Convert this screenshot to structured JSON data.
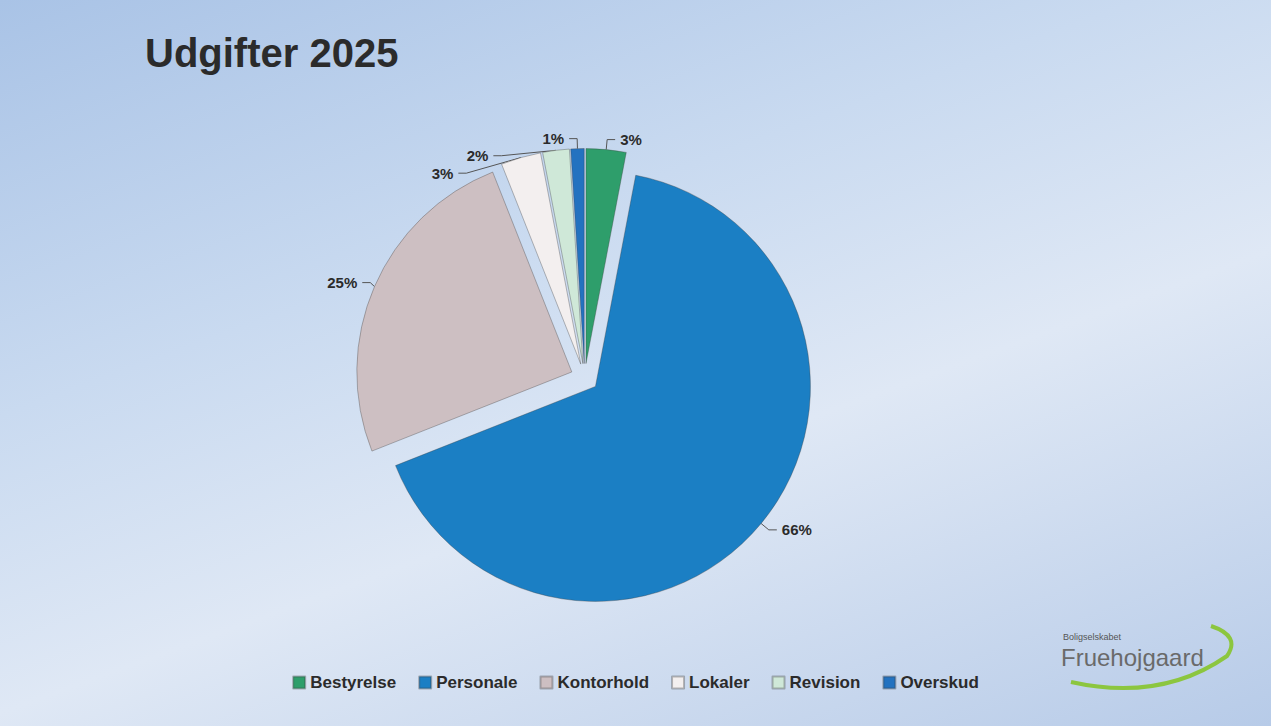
{
  "chart_data": {
    "type": "pie",
    "title": "Udgifter 2025",
    "categories": [
      "Bestyrelse",
      "Personale",
      "Kontorhold",
      "Lokaler",
      "Revision",
      "Overskud"
    ],
    "values": [
      3,
      66,
      25,
      3,
      2,
      1
    ],
    "value_labels": [
      "3%",
      "66%",
      "25%",
      "3%",
      "2%",
      "1%"
    ],
    "colors": [
      "#2e9e6b",
      "#1b7fc4",
      "#cdbfc2",
      "#f3efef",
      "#cfe8d8",
      "#2372c0"
    ],
    "data_labels": true,
    "legend": "bottom"
  },
  "logo": {
    "small": "Boligselskabet",
    "name": "Fruehojgaard"
  }
}
